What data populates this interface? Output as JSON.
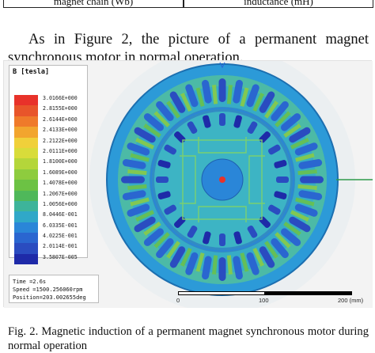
{
  "table_fragment": {
    "left_cell": "magnet chain (Wb)",
    "right_cell": "inductance (mH)"
  },
  "paragraph": "As in Figure 2, the picture of a permanent magnet synchronous motor in normal operation.",
  "figure": {
    "legend": {
      "title": "B [tesla]",
      "values": [
        "3.0166E+000",
        "2.8155E+000",
        "2.6144E+000",
        "2.4133E+000",
        "2.2122E+000",
        "2.0111E+000",
        "1.8100E+000",
        "1.6089E+000",
        "1.4078E+000",
        "1.2067E+000",
        "1.0056E+000",
        "8.0446E-001",
        "6.0335E-001",
        "4.0225E-001",
        "2.0114E-001",
        "3.5807E-005"
      ],
      "colors": [
        "#e8322a",
        "#e8552a",
        "#ef7a2a",
        "#f2a52e",
        "#f0d03a",
        "#d8dc3a",
        "#b4d63a",
        "#8ecc3e",
        "#6cc244",
        "#4fb85a",
        "#3db49a",
        "#30a8c8",
        "#2a86d8",
        "#2a66d0",
        "#2a4cc0",
        "#1e2aa8"
      ]
    },
    "status": {
      "time": "Time =2.6s",
      "speed": "Speed =1500.256060rpm",
      "position": "Position=203.002655deg"
    },
    "scale": {
      "ticks": [
        "0",
        "100",
        "200 (mm)"
      ]
    }
  },
  "caption": "Fig. 2. Magnetic induction of a permanent magnet synchronous motor during normal operation"
}
